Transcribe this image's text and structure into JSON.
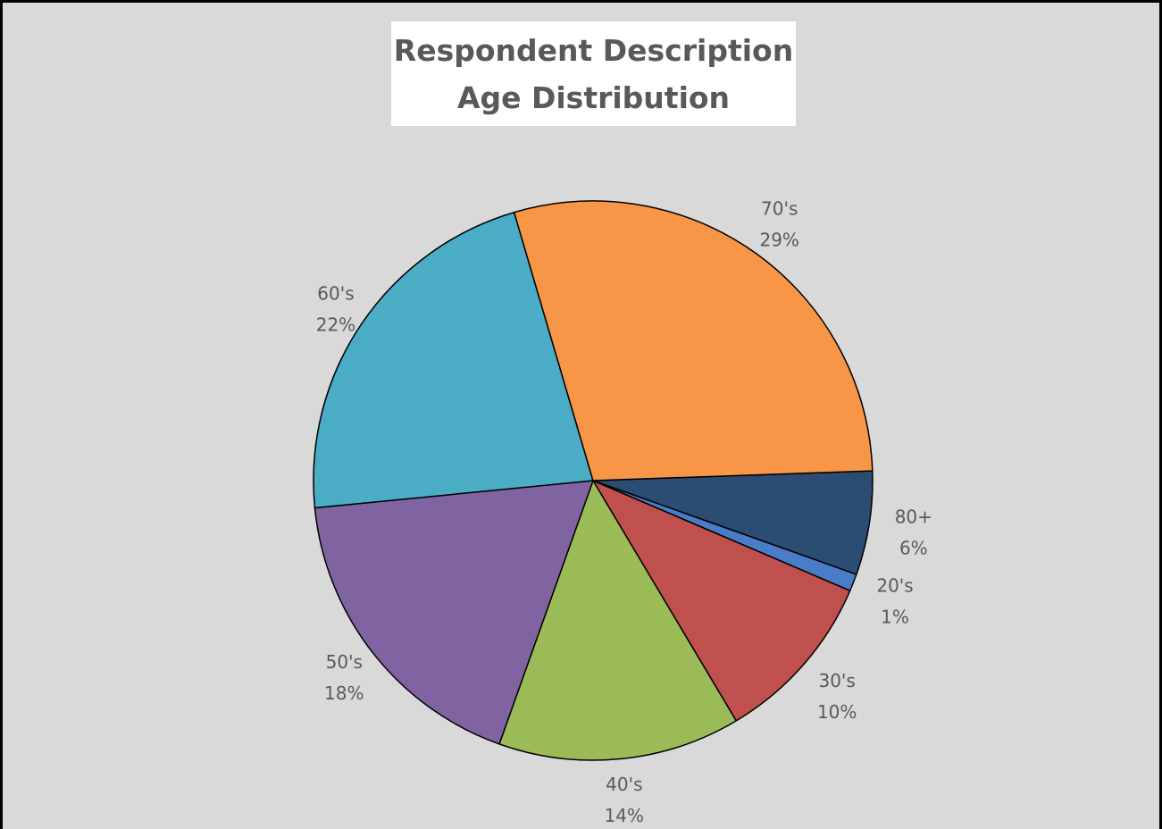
{
  "chart_data": {
    "type": "pie",
    "title": [
      "Respondent Description",
      "Age Distribution"
    ],
    "categories": [
      "80+",
      "20's",
      "30's",
      "40's",
      "50's",
      "60's",
      "70's"
    ],
    "values": [
      6,
      1,
      10,
      14,
      18,
      22,
      29
    ],
    "value_labels": [
      "6%",
      "1%",
      "10%",
      "14%",
      "18%",
      "22%",
      "29%"
    ],
    "colors": [
      "#2b4c73",
      "#4a7cc7",
      "#c0504d",
      "#9bbb59",
      "#8064a2",
      "#4bacc6",
      "#f79646"
    ],
    "legend": "none",
    "data_labels": "category and percentage"
  },
  "background_color": "#d9d9d9"
}
